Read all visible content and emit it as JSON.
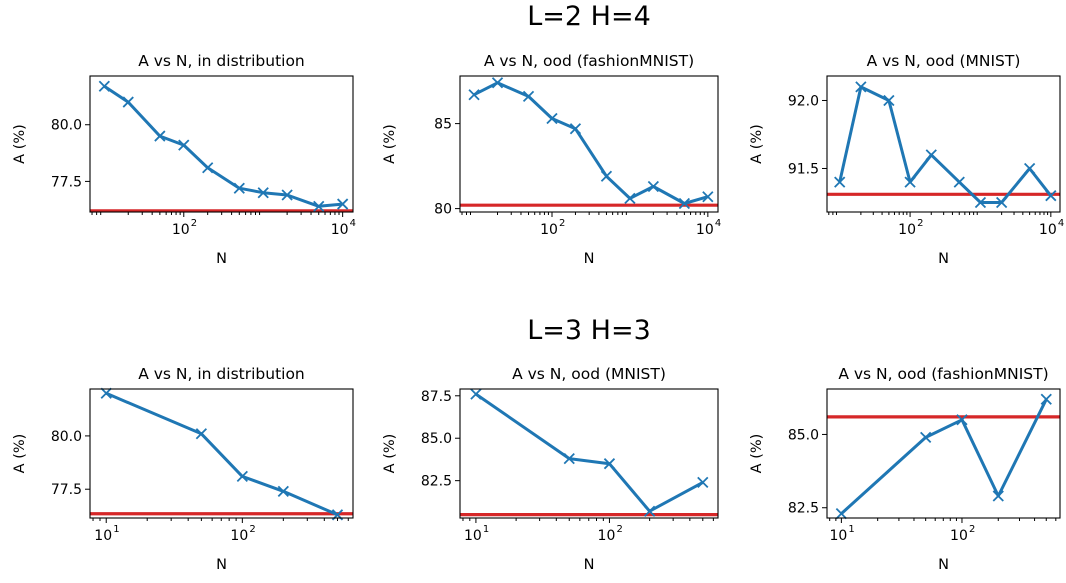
{
  "row_titles": [
    "L=2 H=4",
    "L=3 H=3"
  ],
  "chart_data": [
    {
      "type": "line",
      "title": "A vs N, in distribution",
      "xlabel": "N",
      "ylabel": "A (%)",
      "xscale": "log",
      "xlim": [
        6.6,
        13500
      ],
      "ylim": [
        76.15,
        82.15
      ],
      "x": [
        10,
        20,
        50,
        100,
        200,
        500,
        1000,
        2000,
        5000,
        10000
      ],
      "y": [
        81.7,
        81.0,
        79.5,
        79.1,
        78.1,
        77.2,
        77.0,
        76.9,
        76.4,
        76.5
      ],
      "reference": 76.2,
      "xticks": [
        {
          "base": "10",
          "exp": "2",
          "value": 100
        },
        {
          "base": "10",
          "exp": "4",
          "value": 10000
        }
      ],
      "yticks": [
        {
          "label": "77.5",
          "value": 77.5
        },
        {
          "label": "80.0",
          "value": 80.0
        }
      ],
      "colors": {
        "series": "#1f77b4",
        "reference": "#d62728"
      }
    },
    {
      "type": "line",
      "title": "A vs N, ood (fashionMNIST)",
      "xlabel": "N",
      "ylabel": "A (%)",
      "xscale": "log",
      "xlim": [
        6.6,
        13500
      ],
      "ylim": [
        79.8,
        87.8
      ],
      "x": [
        10,
        20,
        50,
        100,
        200,
        500,
        1000,
        2000,
        5000,
        10000
      ],
      "y": [
        86.7,
        87.4,
        86.6,
        85.3,
        84.7,
        81.9,
        80.6,
        81.3,
        80.3,
        80.7
      ],
      "reference": 80.2,
      "xticks": [
        {
          "base": "10",
          "exp": "2",
          "value": 100
        },
        {
          "base": "10",
          "exp": "4",
          "value": 10000
        }
      ],
      "yticks": [
        {
          "label": "80",
          "value": 80
        },
        {
          "label": "85",
          "value": 85
        }
      ],
      "colors": {
        "series": "#1f77b4",
        "reference": "#d62728"
      }
    },
    {
      "type": "line",
      "title": "A vs N, ood (MNIST)",
      "xlabel": "N",
      "ylabel": "A (%)",
      "xscale": "log",
      "xlim": [
        6.6,
        13500
      ],
      "ylim": [
        91.18,
        92.18
      ],
      "x": [
        10,
        20,
        50,
        100,
        200,
        500,
        1000,
        2000,
        5000,
        10000
      ],
      "y": [
        91.4,
        92.1,
        92.0,
        91.4,
        91.6,
        91.4,
        91.25,
        91.25,
        91.5,
        91.3
      ],
      "reference": 91.31,
      "xticks": [
        {
          "base": "10",
          "exp": "2",
          "value": 100
        },
        {
          "base": "10",
          "exp": "4",
          "value": 10000
        }
      ],
      "yticks": [
        {
          "label": "91.5",
          "value": 91.5
        },
        {
          "label": "92.0",
          "value": 92.0
        }
      ],
      "colors": {
        "series": "#1f77b4",
        "reference": "#d62728"
      }
    },
    {
      "type": "line",
      "title": "A vs N, in distribution",
      "xlabel": "N",
      "ylabel": "A (%)",
      "xscale": "log",
      "xlim": [
        7.6,
        650
      ],
      "ylim": [
        76.15,
        82.2
      ],
      "x": [
        10,
        50,
        100,
        200,
        500
      ],
      "y": [
        82.0,
        80.1,
        78.1,
        77.4,
        76.3
      ],
      "reference": 76.35,
      "xticks": [
        {
          "base": "10",
          "exp": "1",
          "value": 10
        },
        {
          "base": "10",
          "exp": "2",
          "value": 100
        }
      ],
      "yticks": [
        {
          "label": "77.5",
          "value": 77.5
        },
        {
          "label": "80.0",
          "value": 80.0
        }
      ],
      "colors": {
        "series": "#1f77b4",
        "reference": "#d62728"
      }
    },
    {
      "type": "line",
      "title": "A vs N, ood (MNIST)",
      "xlabel": "N",
      "ylabel": "A (%)",
      "xscale": "log",
      "xlim": [
        7.6,
        650
      ],
      "ylim": [
        80.3,
        87.9
      ],
      "x": [
        10,
        50,
        100,
        200,
        500
      ],
      "y": [
        87.6,
        83.8,
        83.5,
        80.7,
        82.4
      ],
      "reference": 80.5,
      "xticks": [
        {
          "base": "10",
          "exp": "1",
          "value": 10
        },
        {
          "base": "10",
          "exp": "2",
          "value": 100
        }
      ],
      "yticks": [
        {
          "label": "82.5",
          "value": 82.5
        },
        {
          "label": "85.0",
          "value": 85.0
        },
        {
          "label": "87.5",
          "value": 87.5
        }
      ],
      "colors": {
        "series": "#1f77b4",
        "reference": "#d62728"
      }
    },
    {
      "type": "line",
      "title": "A vs N, ood (fashionMNIST)",
      "xlabel": "N",
      "ylabel": "A (%)",
      "xscale": "log",
      "xlim": [
        7.6,
        650
      ],
      "ylim": [
        82.15,
        86.55
      ],
      "x": [
        10,
        50,
        100,
        200,
        500
      ],
      "y": [
        82.3,
        84.9,
        85.5,
        82.9,
        86.2
      ],
      "reference": 85.6,
      "xticks": [
        {
          "base": "10",
          "exp": "1",
          "value": 10
        },
        {
          "base": "10",
          "exp": "2",
          "value": 100
        }
      ],
      "yticks": [
        {
          "label": "82.5",
          "value": 82.5
        },
        {
          "label": "85.0",
          "value": 85.0
        }
      ],
      "colors": {
        "series": "#1f77b4",
        "reference": "#d62728"
      }
    }
  ]
}
